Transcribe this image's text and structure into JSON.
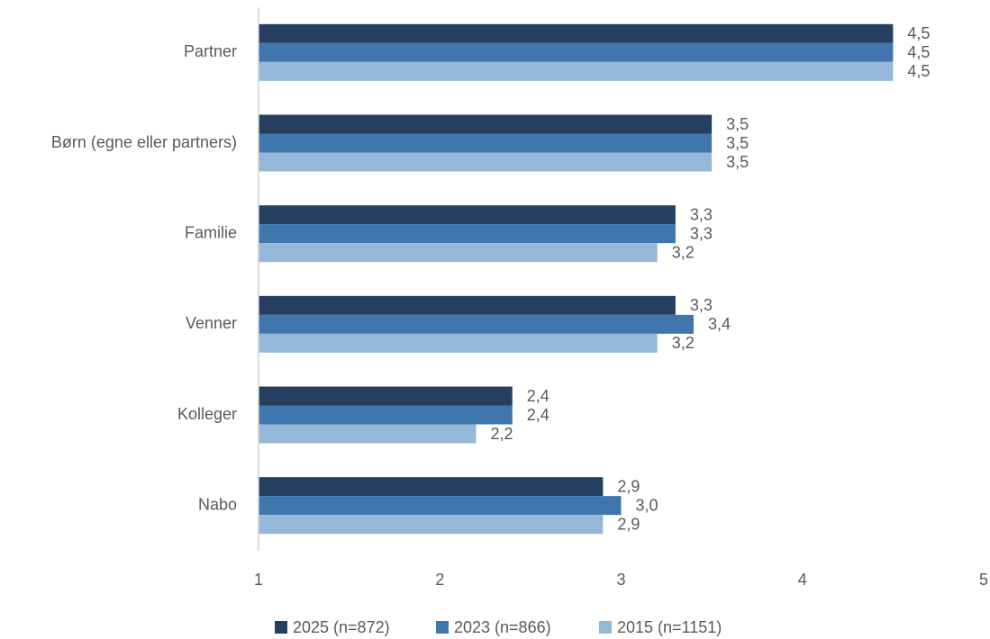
{
  "chart_data": {
    "type": "bar",
    "orientation": "horizontal",
    "categories": [
      "Partner",
      "Børn (egne eller partners)",
      "Familie",
      "Venner",
      "Kolleger",
      "Nabo"
    ],
    "series": [
      {
        "name": "2025 (n=872)",
        "color": "#243f60",
        "values": [
          4.5,
          3.5,
          3.3,
          3.3,
          2.4,
          2.9
        ],
        "value_labels": [
          "4,5",
          "3,5",
          "3,3",
          "3,3",
          "2,4",
          "2,9"
        ]
      },
      {
        "name": "2023 (n=866)",
        "color": "#3f76ad",
        "values": [
          4.5,
          3.5,
          3.3,
          3.4,
          2.4,
          3.0
        ],
        "value_labels": [
          "4,5",
          "3,5",
          "3,3",
          "3,4",
          "2,4",
          "3,0"
        ]
      },
      {
        "name": "2015 (n=1151)",
        "color": "#95b8d9",
        "values": [
          4.5,
          3.5,
          3.2,
          3.2,
          2.2,
          2.9
        ],
        "value_labels": [
          "4,5",
          "3,5",
          "3,2",
          "3,2",
          "2,2",
          "2,9"
        ]
      }
    ],
    "xlim": [
      1,
      5
    ],
    "xticks": [
      1,
      2,
      3,
      4,
      5
    ],
    "grid": false,
    "legend": "bottom"
  }
}
